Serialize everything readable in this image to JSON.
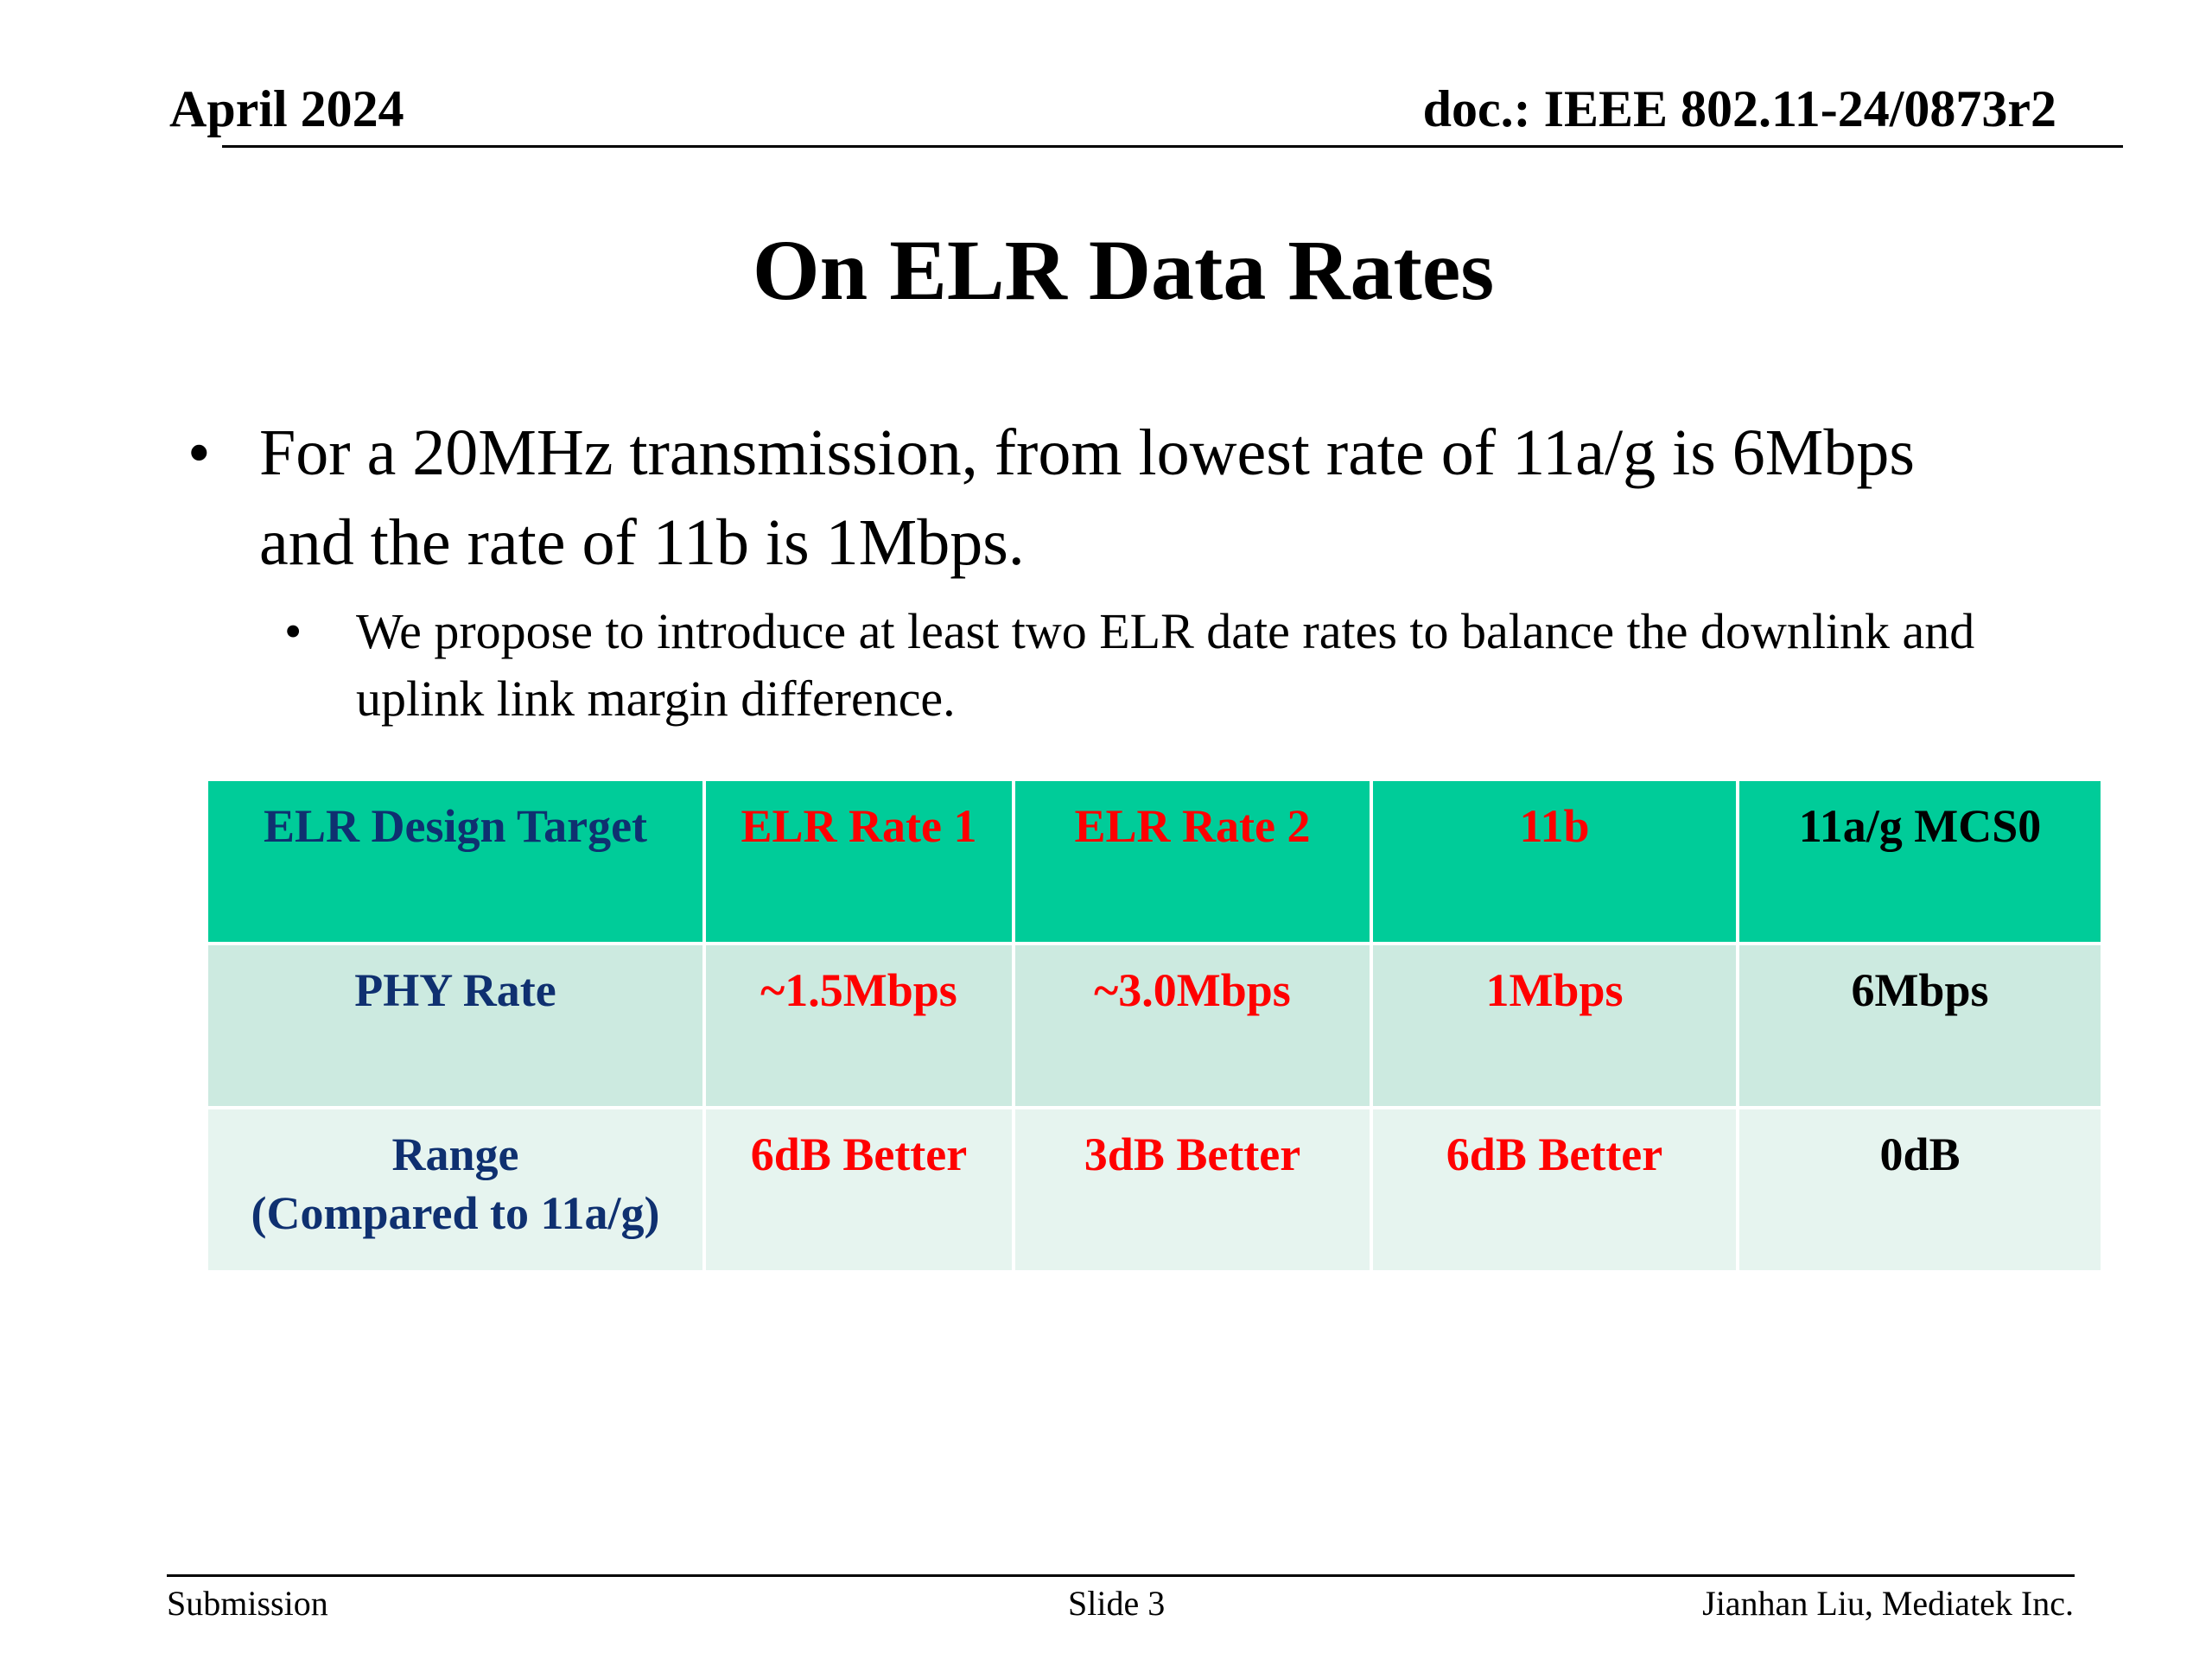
{
  "header": {
    "date": "April 2024",
    "doc_id": "doc.: IEEE 802.11-24/0873r2"
  },
  "title": "On ELR Data Rates",
  "bullets": {
    "main": "For a 20MHz transmission, from lowest rate of 11a/g is 6Mbps and the rate of 11b is 1Mbps.",
    "sub": "We propose to introduce at least two ELR date rates to balance the downlink and uplink link margin difference."
  },
  "table": {
    "header": [
      "ELR Design Target",
      "ELR Rate 1",
      "ELR Rate 2",
      "11b",
      "11a/g MCS0"
    ],
    "rows": [
      [
        "PHY Rate",
        "~1.5Mbps",
        "~3.0Mbps",
        "1Mbps",
        "6Mbps"
      ],
      [
        "Range",
        "6dB Better",
        "3dB Better",
        "6dB Better",
        "0dB"
      ]
    ],
    "range_note": "(Compared to 11a/g)"
  },
  "colors": {
    "header_row_bg": "#00cc99",
    "row1_bg": "#cceae0",
    "row2_bg": "#e6f4ef",
    "navy_text": "#0f3070",
    "red_text": "#ff0000"
  },
  "footer": {
    "left": "Submission",
    "center": "Slide 3",
    "right": "Jianhan Liu, Mediatek Inc."
  }
}
